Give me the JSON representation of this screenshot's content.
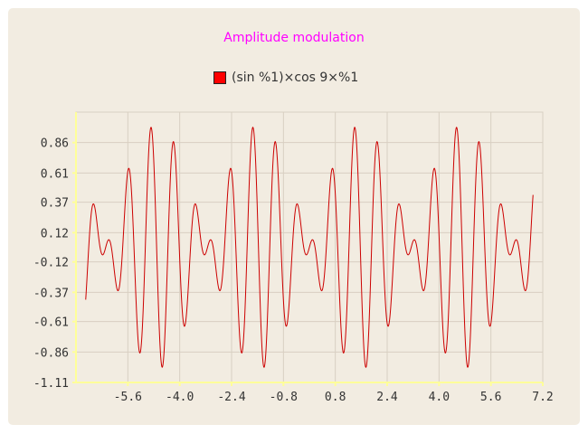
{
  "colors": {
    "background": "#f2ece1",
    "title": "#ff00ff",
    "series": "#cc0000",
    "legend_swatch": "#ff0000",
    "grid": "#d8cfc2",
    "axis": "#ffff99"
  },
  "chart_data": {
    "type": "line",
    "title": "Amplitude modulation",
    "xlabel": "",
    "ylabel": "",
    "legend_position": "top",
    "grid": true,
    "series": [
      {
        "name": "(sin %1)×cos 9×%1",
        "function": "sin(x)*cos(9*x)",
        "x_range": [
          -6.9,
          6.9
        ]
      }
    ],
    "xlim": [
      -7.2,
      7.2
    ],
    "ylim": [
      -1.11,
      1.11
    ],
    "x_ticks": [
      "-5.6",
      "-4.0",
      "-2.4",
      "-0.8",
      "0.8",
      "2.4",
      "4.0",
      "5.6",
      "7.2"
    ],
    "y_ticks": [
      "0.86",
      "0.61",
      "0.37",
      "0.12",
      "-0.12",
      "-0.37",
      "-0.61",
      "-0.86",
      "-1.11"
    ]
  }
}
